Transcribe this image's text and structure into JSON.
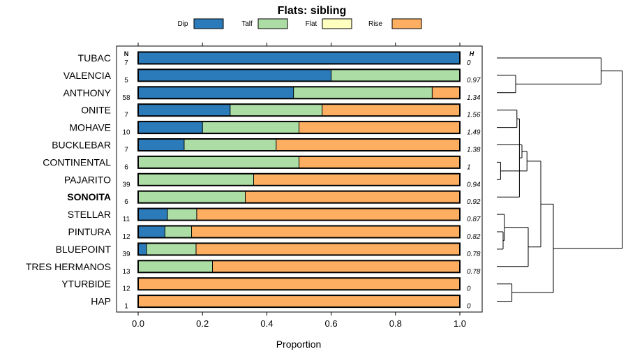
{
  "chart_data": {
    "type": "stacked-horizontal-bar",
    "title": "Flats: sibling",
    "xlabel": "Proportion",
    "xlim": [
      -0.07,
      1.07
    ],
    "xticks": [
      "0.0",
      "0.2",
      "0.4",
      "0.6",
      "0.8",
      "1.0"
    ],
    "xtick_values": [
      0,
      0.2,
      0.4,
      0.6,
      0.8,
      1.0
    ],
    "n_header": "N",
    "h_header": "H",
    "highlight": "SONOITA",
    "legend": [
      {
        "name": "Dip",
        "color": "#2b7bba"
      },
      {
        "name": "Talf",
        "color": "#abdda4"
      },
      {
        "name": "Flat",
        "color": "#ffffbf"
      },
      {
        "name": "Rise",
        "color": "#fdae61"
      }
    ],
    "categories": [
      "TUBAC",
      "VALENCIA",
      "ANTHONY",
      "ONITE",
      "MOHAVE",
      "BUCKLEBAR",
      "CONTINENTAL",
      "PAJARITO",
      "SONOITA",
      "STELLAR",
      "PINTURA",
      "BLUEPOINT",
      "TRES HERMANOS",
      "YTURBIDE",
      "HAP"
    ],
    "n": [
      "7",
      "5",
      "58",
      "7",
      "10",
      "7",
      "6",
      "39",
      "6",
      "11",
      "12",
      "39",
      "13",
      "12",
      "1"
    ],
    "h": [
      "0",
      "0.97",
      "1.34",
      "1.56",
      "1.49",
      "1.38",
      "1",
      "0.94",
      "0.92",
      "0.87",
      "0.82",
      "0.78",
      "0.78",
      "0",
      "0"
    ],
    "series": [
      {
        "name": "Dip",
        "values": [
          1.0,
          0.6,
          0.483,
          0.286,
          0.2,
          0.143,
          0,
          0,
          0,
          0.091,
          0.083,
          0.026,
          0,
          0,
          0
        ]
      },
      {
        "name": "Talf",
        "values": [
          0,
          0.4,
          0.431,
          0.286,
          0.3,
          0.286,
          0.5,
          0.359,
          0.333,
          0.091,
          0.083,
          0.154,
          0.231,
          0,
          0
        ]
      },
      {
        "name": "Flat",
        "values": [
          0,
          0,
          0,
          0,
          0,
          0,
          0,
          0,
          0,
          0,
          0,
          0,
          0,
          0,
          0
        ]
      },
      {
        "name": "Rise",
        "values": [
          0,
          0,
          0.086,
          0.428,
          0.5,
          0.571,
          0.5,
          0.641,
          0.667,
          0.818,
          0.834,
          0.82,
          0.769,
          1.0,
          1.0
        ]
      }
    ],
    "dendrogram": {
      "merges": [
        {
          "left": "CONTINENTAL",
          "right": "PAJARITO",
          "height": 0.03
        },
        {
          "left": "PINTURA",
          "right": "BLUEPOINT",
          "height": 0.05
        },
        {
          "left": "VALENCIA",
          "right": "ANTHONY",
          "height": 0.15
        },
        {
          "left": "STELLAR",
          "right": "m1",
          "height": 0.06
        },
        {
          "left": "ONITE",
          "right": "MOHAVE",
          "height": 0.16
        },
        {
          "left": "m4",
          "right": "SONOITA",
          "height": 0.18
        },
        {
          "left": "m5",
          "right": "BUCKLEBAR",
          "height": 0.2
        },
        {
          "left": "m3",
          "right": "TRES HERMANOS",
          "height": 0.25
        },
        {
          "left": "YTURBIDE",
          "right": "HAP",
          "height": 0.12
        },
        {
          "left": "m6",
          "right": "m0",
          "height": 0.24
        },
        {
          "left": "m9",
          "right": "m7",
          "height": 0.35
        },
        {
          "left": "m10",
          "right": "m8",
          "height": 0.45
        },
        {
          "left": "TUBAC",
          "right": "m2",
          "height": 0.83
        },
        {
          "left": "m11",
          "right": "m12",
          "height": 1.0
        }
      ]
    }
  }
}
